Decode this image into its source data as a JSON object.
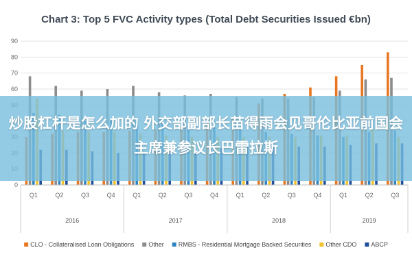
{
  "chart_data": {
    "type": "bar",
    "title": "Chart 3: Top 5 FVC Activity types (Total Debt Securities Issued €bn)",
    "ylim": [
      0,
      90
    ],
    "yticks": [
      0,
      10,
      20,
      30,
      40,
      50,
      60,
      70,
      80,
      90
    ],
    "grid": true,
    "legend_position": "bottom",
    "categories": [
      "Q1",
      "Q2",
      "Q3",
      "Q4",
      "Q1",
      "Q2",
      "Q3",
      "Q4",
      "Q1",
      "Q2",
      "Q3",
      "Q4",
      "Q1",
      "Q2",
      "Q3"
    ],
    "years": [
      {
        "label": "2016",
        "quarters": 4
      },
      {
        "label": "2017",
        "quarters": 4
      },
      {
        "label": "2018",
        "quarters": 4
      },
      {
        "label": "2019",
        "quarters": 3
      }
    ],
    "series": [
      {
        "name": "CLO - Collateralised Loan Obligations",
        "color": "#e87722",
        "values": [
          30,
          32,
          33,
          33,
          34,
          35,
          36,
          40,
          42,
          51,
          57,
          61,
          68,
          75,
          83
        ]
      },
      {
        "name": "Other",
        "color": "#8c8c8c",
        "values": [
          68,
          62,
          59,
          60,
          62,
          58,
          56,
          57,
          55,
          54,
          54,
          55,
          59,
          66,
          67
        ]
      },
      {
        "name": "RMBS - Residential Mortgage Backed Securities",
        "color": "#2e84c1",
        "values": [
          45,
          44,
          40,
          40,
          40,
          39,
          37,
          36,
          35,
          33,
          32,
          31,
          30,
          33,
          34
        ]
      },
      {
        "name": "Other CDO",
        "color": "#f2c12e",
        "values": [
          54,
          34,
          33,
          33,
          32,
          31,
          30,
          30,
          30,
          30,
          30,
          31,
          31,
          35,
          30
        ]
      },
      {
        "name": "ABCP",
        "color": "#1f4e9b",
        "values": [
          22,
          22,
          21,
          20,
          20,
          21,
          22,
          23,
          24,
          24,
          24,
          24,
          25,
          26,
          26
        ]
      }
    ]
  },
  "overlay": {
    "text": "炒股杠杆是怎么加的 外交部副部长苗得雨会见哥伦比亚前国会主席兼参议长巴雷拉斯"
  }
}
